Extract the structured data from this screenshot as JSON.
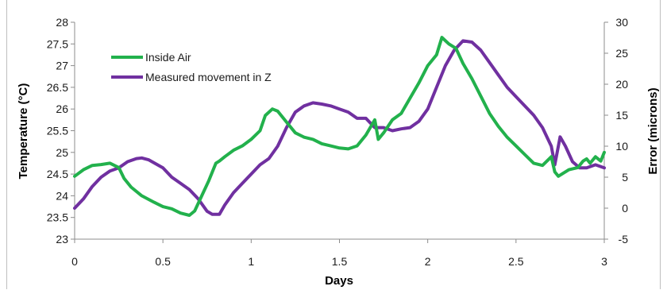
{
  "chart_data": {
    "type": "line",
    "title": "",
    "xlabel": "Days",
    "ylabel": "Temperature (°C)",
    "y2label": "Error (microns)",
    "xlim": [
      0,
      3
    ],
    "ylim": [
      23,
      28
    ],
    "y2lim": [
      -5,
      30
    ],
    "x_ticks": [
      "0",
      "0.5",
      "1",
      "1.5",
      "2",
      "2.5",
      "3"
    ],
    "y_ticks": [
      "23",
      "23.5",
      "24",
      "24.5",
      "25",
      "25.5",
      "26",
      "26.5",
      "27",
      "27.5",
      "28"
    ],
    "y2_ticks": [
      "-5",
      "0",
      "5",
      "10",
      "15",
      "20",
      "25",
      "30"
    ],
    "grid": false,
    "legend_position": "top-left",
    "series": [
      {
        "name": "Inside Air",
        "axis": "left",
        "color": "#22b14c",
        "x": [
          0,
          0.05,
          0.1,
          0.15,
          0.2,
          0.25,
          0.28,
          0.32,
          0.38,
          0.45,
          0.5,
          0.55,
          0.6,
          0.65,
          0.68,
          0.72,
          0.76,
          0.8,
          0.82,
          0.85,
          0.9,
          0.95,
          1.0,
          1.05,
          1.08,
          1.12,
          1.15,
          1.2,
          1.25,
          1.3,
          1.35,
          1.4,
          1.45,
          1.5,
          1.55,
          1.6,
          1.65,
          1.7,
          1.72,
          1.75,
          1.8,
          1.85,
          1.9,
          1.95,
          2.0,
          2.05,
          2.08,
          2.12,
          2.16,
          2.2,
          2.25,
          2.3,
          2.35,
          2.4,
          2.45,
          2.5,
          2.55,
          2.6,
          2.65,
          2.7,
          2.72,
          2.74,
          2.76,
          2.8,
          2.85,
          2.88,
          2.9,
          2.92,
          2.95,
          2.98,
          3.0
        ],
        "values": [
          24.45,
          24.6,
          24.7,
          24.72,
          24.75,
          24.65,
          24.4,
          24.2,
          24.0,
          23.85,
          23.75,
          23.7,
          23.6,
          23.55,
          23.65,
          24.0,
          24.35,
          24.75,
          24.8,
          24.9,
          25.05,
          25.15,
          25.3,
          25.5,
          25.85,
          26.0,
          25.95,
          25.7,
          25.45,
          25.35,
          25.3,
          25.2,
          25.15,
          25.1,
          25.08,
          25.15,
          25.4,
          25.75,
          25.3,
          25.45,
          25.75,
          25.9,
          26.25,
          26.6,
          27.0,
          27.25,
          27.65,
          27.5,
          27.4,
          27.05,
          26.7,
          26.3,
          25.9,
          25.6,
          25.35,
          25.15,
          24.95,
          24.75,
          24.7,
          24.9,
          24.55,
          24.45,
          24.5,
          24.6,
          24.65,
          24.8,
          24.85,
          24.75,
          24.9,
          24.8,
          25.0
        ]
      },
      {
        "name": "Measured movement in Z",
        "axis": "right",
        "color": "#7030a0",
        "x": [
          0,
          0.05,
          0.1,
          0.15,
          0.2,
          0.25,
          0.3,
          0.35,
          0.38,
          0.42,
          0.5,
          0.55,
          0.6,
          0.65,
          0.7,
          0.75,
          0.78,
          0.82,
          0.85,
          0.9,
          0.95,
          1.0,
          1.05,
          1.1,
          1.15,
          1.2,
          1.25,
          1.3,
          1.35,
          1.4,
          1.45,
          1.5,
          1.55,
          1.6,
          1.65,
          1.7,
          1.75,
          1.8,
          1.85,
          1.9,
          1.95,
          2.0,
          2.05,
          2.1,
          2.15,
          2.2,
          2.25,
          2.3,
          2.35,
          2.4,
          2.45,
          2.5,
          2.55,
          2.6,
          2.65,
          2.7,
          2.72,
          2.75,
          2.78,
          2.82,
          2.86,
          2.9,
          2.95,
          3.0
        ],
        "values": [
          0,
          1.5,
          3.5,
          5.0,
          6.0,
          6.5,
          7.5,
          8.0,
          8.1,
          7.8,
          6.5,
          5.0,
          4.0,
          3.0,
          1.5,
          -0.5,
          -1.0,
          -1.0,
          0.5,
          2.5,
          4.0,
          5.5,
          7.0,
          8.0,
          10.0,
          13.0,
          15.5,
          16.5,
          17.0,
          16.8,
          16.5,
          16.0,
          15.5,
          14.5,
          14.5,
          13.0,
          13.0,
          12.5,
          12.8,
          13.0,
          14.0,
          16.0,
          19.5,
          23.0,
          25.5,
          27.0,
          26.8,
          25.5,
          23.5,
          21.5,
          19.5,
          18.0,
          16.5,
          15.0,
          13.0,
          10.0,
          7.0,
          11.5,
          10.0,
          7.5,
          6.5,
          6.5,
          7.0,
          6.5
        ]
      }
    ]
  }
}
